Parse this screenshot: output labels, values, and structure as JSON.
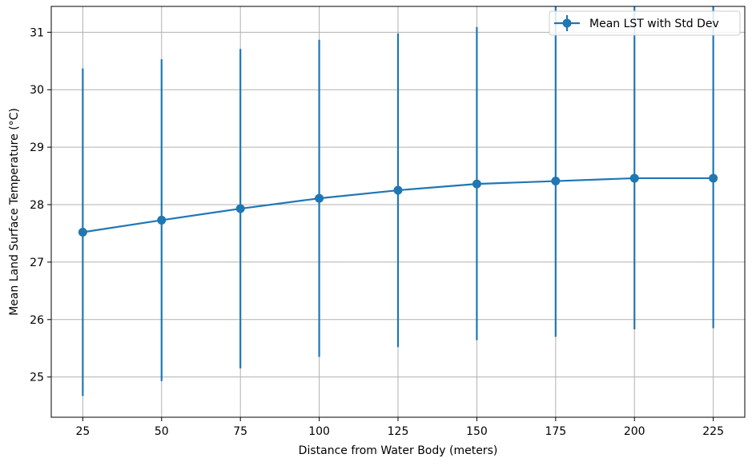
{
  "chart_data": {
    "type": "line",
    "title": "",
    "xlabel": "Distance from Water Body (meters)",
    "ylabel": "Mean Land Surface Temperature (°C)",
    "x": [
      25,
      50,
      75,
      100,
      125,
      150,
      175,
      200,
      225
    ],
    "xticks": [
      "25",
      "50",
      "75",
      "100",
      "125",
      "150",
      "175",
      "200",
      "225"
    ],
    "yticks": [
      "25",
      "26",
      "27",
      "28",
      "29",
      "30",
      "31"
    ],
    "xlim": [
      15,
      235
    ],
    "ylim": [
      24.3,
      31.45
    ],
    "grid": true,
    "legend_position": "top-right",
    "series": [
      {
        "name": "Mean LST with Std Dev",
        "color": "#1f77b4",
        "marker": "circle",
        "values": [
          27.52,
          27.73,
          27.93,
          28.11,
          28.25,
          28.36,
          28.41,
          28.46,
          28.46
        ],
        "err_low": [
          24.67,
          24.93,
          25.15,
          25.35,
          25.52,
          25.64,
          25.7,
          25.83,
          25.85
        ],
        "err_high": [
          30.37,
          30.53,
          30.71,
          30.87,
          30.98,
          31.09,
          31.45,
          31.45,
          31.45
        ]
      }
    ]
  }
}
